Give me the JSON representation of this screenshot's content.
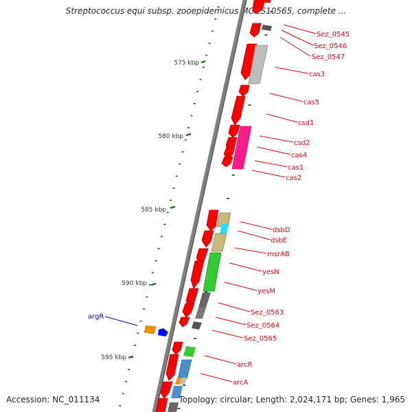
{
  "title": "Streptococcus equi subsp. zooepidemicus MGCS10565, complete ...",
  "footer": {
    "accession": "Accession: NC_011134",
    "summary": "Topology: circular; Length: 2,024,171 bp; Genes: 1,965"
  },
  "colors": {
    "backbone": "#808080",
    "forward_gene": "#ff0000",
    "reverse_gene": "#ff0000",
    "label_red": "#e8000b",
    "label_blue": "#0000c0",
    "tick": "#1a7a1a",
    "scale_text": "#333333",
    "cas3": "#bdbdbd",
    "csd": "#ff1a8c",
    "dsbD": "#c8b87a",
    "dsbE": "#22e0ff",
    "msrAB": "#c8b87a",
    "yes": "#33cc33",
    "sez_grey": "#777777",
    "arcR": "#33cc33",
    "arcA": "#4a90c8",
    "argR_orange": "#ff8c00",
    "argR_blue": "#0000ff"
  },
  "scale_labels": [
    "575 kbp",
    "580 kbp",
    "585 kbp",
    "590 kbp",
    "595 kbp"
  ],
  "gene_labels": [
    {
      "text": "Sez_0545",
      "color": "red"
    },
    {
      "text": "Sez_0546",
      "color": "red"
    },
    {
      "text": "Sez_0547",
      "color": "red"
    },
    {
      "text": "cas3",
      "color": "red"
    },
    {
      "text": "cas5",
      "color": "red"
    },
    {
      "text": "csd1",
      "color": "red"
    },
    {
      "text": "csd2",
      "color": "red"
    },
    {
      "text": "cas4",
      "color": "red"
    },
    {
      "text": "cas1",
      "color": "red"
    },
    {
      "text": "cas2",
      "color": "red"
    },
    {
      "text": "dsbD",
      "color": "red"
    },
    {
      "text": "dsbE",
      "color": "red"
    },
    {
      "text": "msrAB",
      "color": "red"
    },
    {
      "text": "yesN",
      "color": "red"
    },
    {
      "text": "yesM",
      "color": "red"
    },
    {
      "text": "Sez_0563",
      "color": "red"
    },
    {
      "text": "Sez_0564",
      "color": "red"
    },
    {
      "text": "Sez_0565",
      "color": "red"
    },
    {
      "text": "arcR",
      "color": "red"
    },
    {
      "text": "arcA",
      "color": "red"
    },
    {
      "text": "argR",
      "color": "blue"
    }
  ]
}
